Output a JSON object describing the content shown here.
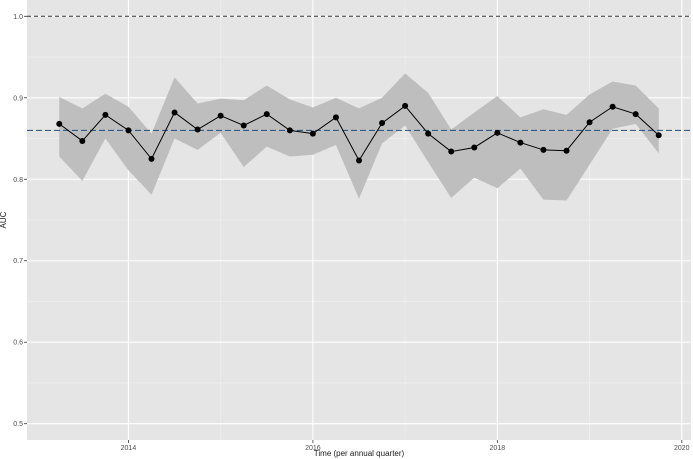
{
  "chart_data": {
    "type": "line",
    "title": "",
    "xlabel": "Time (per annual quarter)",
    "ylabel": "AUC",
    "xlim": [
      2012.9,
      2020.1
    ],
    "ylim": [
      0.48,
      1.02
    ],
    "x_ticks": [
      2014,
      2016,
      2018,
      2020
    ],
    "x_tick_labels": [
      "2014",
      "2016",
      "2018",
      "2020"
    ],
    "y_ticks": [
      0.5,
      0.6,
      0.7,
      0.8,
      0.9,
      1.0
    ],
    "y_tick_labels": [
      "0.5",
      "0.6",
      "0.7",
      "0.8",
      "0.9",
      "1.0"
    ],
    "grid": true,
    "background_color": "#e5e5e5",
    "line_color": "#000000",
    "ribbon_color": "#bebebe",
    "reference_line_color": "#1f4e79",
    "bound_line_color": "#333333",
    "upper_bound": 1.0,
    "reference_value": 0.86,
    "series": [
      {
        "x": [
          2013.25,
          2013.5,
          2013.75,
          2014.0,
          2014.25,
          2014.5,
          2014.75,
          2015.0,
          2015.25,
          2015.5,
          2015.75,
          2016.0,
          2016.25,
          2016.5,
          2016.75,
          2017.0,
          2017.25,
          2017.5,
          2017.75,
          2018.0,
          2018.25,
          2018.5,
          2018.75,
          2019.0,
          2019.25,
          2019.5,
          2019.75
        ],
        "values": [
          0.868,
          0.847,
          0.879,
          0.86,
          0.825,
          0.882,
          0.861,
          0.878,
          0.866,
          0.88,
          0.86,
          0.856,
          0.876,
          0.823,
          0.869,
          0.89,
          0.856,
          0.834,
          0.839,
          0.857,
          0.845,
          0.836,
          0.835,
          0.87,
          0.889,
          0.88,
          0.854
        ],
        "lower": [
          0.828,
          0.798,
          0.85,
          0.811,
          0.781,
          0.85,
          0.836,
          0.857,
          0.815,
          0.84,
          0.828,
          0.83,
          0.842,
          0.776,
          0.844,
          0.866,
          0.821,
          0.777,
          0.802,
          0.789,
          0.813,
          0.775,
          0.774,
          0.818,
          0.862,
          0.868,
          0.832
        ],
        "upper": [
          0.901,
          0.887,
          0.905,
          0.889,
          0.856,
          0.925,
          0.893,
          0.899,
          0.897,
          0.915,
          0.898,
          0.888,
          0.9,
          0.887,
          0.9,
          0.93,
          0.906,
          0.861,
          0.882,
          0.902,
          0.876,
          0.886,
          0.879,
          0.904,
          0.92,
          0.915,
          0.887
        ]
      }
    ]
  }
}
